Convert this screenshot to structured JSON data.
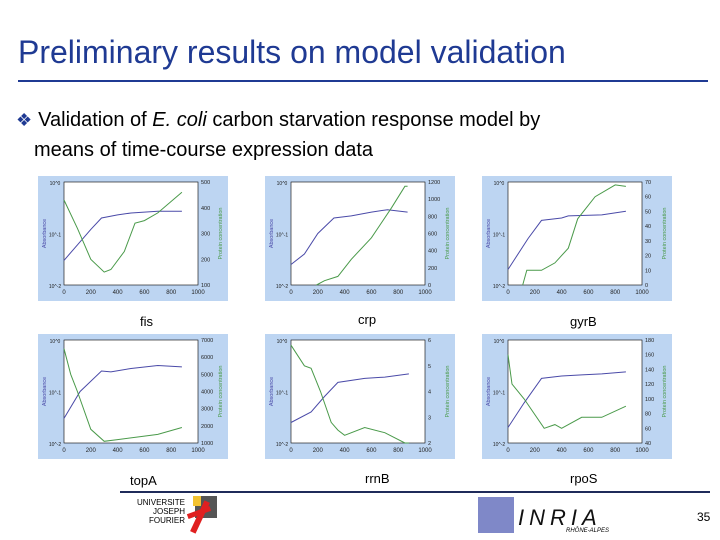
{
  "slide": {
    "title": "Preliminary results on model validation",
    "bullet_pre": "Validation of ",
    "bullet_em": "E. coli",
    "bullet_post": " carbon starvation response model by",
    "bullet_line2": "means of time-course expression data",
    "page_number": "35",
    "logo_left": "UNIVERSITE JOSEPH FOURIER",
    "logo_right": "INRIA",
    "logo_right_sub": "RHÔNE-ALPES"
  },
  "colors": {
    "title": "#1f3a93",
    "panel_bg": "#bdd5f2",
    "absorbance": "#4a4aa8",
    "protein": "#4a9a4a"
  },
  "chart_data": [
    {
      "type": "line",
      "gene": "fis",
      "xlim": [
        0,
        1000
      ],
      "xticks": [
        0,
        200,
        400,
        600,
        800,
        1000
      ],
      "ylabel": "Absorbance",
      "yscale": "log",
      "ylim": [
        0.01,
        1
      ],
      "yticks": [
        "10^0",
        "10^-1",
        "10^-2"
      ],
      "y2label": "Protein concentration",
      "y2lim": [
        100,
        500
      ],
      "y2ticks": [
        100,
        200,
        300,
        400,
        500
      ],
      "series": [
        {
          "name": "Absorbance",
          "axis": "left",
          "x": [
            0,
            100,
            200,
            280,
            400,
            500,
            600,
            700,
            880
          ],
          "y": [
            0.03,
            0.06,
            0.12,
            0.2,
            0.23,
            0.25,
            0.26,
            0.27,
            0.27
          ]
        },
        {
          "name": "Protein concentration",
          "axis": "right",
          "x": [
            0,
            100,
            200,
            300,
            350,
            450,
            530,
            600,
            700,
            880
          ],
          "y": [
            430,
            320,
            200,
            150,
            160,
            230,
            340,
            350,
            380,
            460
          ]
        }
      ]
    },
    {
      "type": "line",
      "gene": "crp",
      "xlim": [
        0,
        1000
      ],
      "xticks": [
        0,
        200,
        400,
        600,
        800,
        1000
      ],
      "ylabel": "Absorbance",
      "yscale": "log",
      "ylim": [
        0.01,
        1
      ],
      "yticks": [
        "10^0",
        "10^-1",
        "10^-2"
      ],
      "y2label": "Protein concentration",
      "y2lim": [
        0,
        1200
      ],
      "y2ticks": [
        0,
        200,
        400,
        600,
        800,
        1000,
        1200
      ],
      "series": [
        {
          "name": "Absorbance",
          "axis": "left",
          "x": [
            0,
            100,
            200,
            320,
            450,
            600,
            720,
            870
          ],
          "y": [
            0.025,
            0.04,
            0.1,
            0.2,
            0.22,
            0.26,
            0.29,
            0.26
          ]
        },
        {
          "name": "Protein concentration",
          "axis": "right",
          "x": [
            190,
            250,
            350,
            450,
            600,
            750,
            850,
            870
          ],
          "y": [
            0,
            50,
            100,
            300,
            550,
            900,
            1150,
            1150
          ]
        }
      ]
    },
    {
      "type": "line",
      "gene": "gyrB",
      "xlim": [
        0,
        1000
      ],
      "xticks": [
        0,
        200,
        400,
        600,
        800,
        1000
      ],
      "ylabel": "Absorbance",
      "yscale": "log",
      "ylim": [
        0.01,
        1
      ],
      "yticks": [
        "10^0",
        "10^-1",
        "10^-2"
      ],
      "y2label": "Protein concentration",
      "y2lim": [
        0,
        70
      ],
      "y2ticks": [
        0,
        10,
        20,
        30,
        40,
        50,
        60,
        70
      ],
      "series": [
        {
          "name": "Absorbance",
          "axis": "left",
          "x": [
            0,
            150,
            250,
            400,
            450,
            700,
            880
          ],
          "y": [
            0.02,
            0.08,
            0.18,
            0.2,
            0.22,
            0.23,
            0.27
          ]
        },
        {
          "name": "Protein concentration",
          "axis": "right",
          "x": [
            110,
            140,
            250,
            350,
            450,
            520,
            650,
            800,
            880
          ],
          "y": [
            0,
            10,
            10,
            15,
            25,
            45,
            60,
            68,
            67
          ]
        }
      ]
    },
    {
      "type": "line",
      "gene": "topA",
      "xlim": [
        0,
        1000
      ],
      "xticks": [
        0,
        200,
        400,
        600,
        800,
        1000
      ],
      "ylabel": "Absorbance",
      "yscale": "log",
      "ylim": [
        0.01,
        1
      ],
      "yticks": [
        "10^0",
        "10^-1",
        "10^-2"
      ],
      "y2label": "Protein concentration",
      "y2lim": [
        1000,
        7000
      ],
      "y2ticks": [
        1000,
        2000,
        3000,
        4000,
        5000,
        6000,
        7000
      ],
      "series": [
        {
          "name": "Absorbance",
          "axis": "left",
          "x": [
            0,
            120,
            280,
            350,
            500,
            700,
            880
          ],
          "y": [
            0.03,
            0.1,
            0.25,
            0.24,
            0.28,
            0.32,
            0.3
          ]
        },
        {
          "name": "Protein concentration",
          "axis": "right",
          "x": [
            0,
            50,
            100,
            200,
            300,
            400,
            600,
            700,
            880
          ],
          "y": [
            6500,
            5000,
            4000,
            1800,
            1100,
            1200,
            1400,
            1500,
            1900
          ]
        }
      ]
    },
    {
      "type": "line",
      "gene": "rrnB",
      "xlim": [
        0,
        1000
      ],
      "xticks": [
        0,
        200,
        400,
        600,
        800,
        1000
      ],
      "ylabel": "Absorbance",
      "yscale": "log",
      "ylim": [
        0.01,
        1
      ],
      "yticks": [
        "10^0",
        "10^-1",
        "10^-2"
      ],
      "y2label": "Protein concentration",
      "y2lim": [
        2,
        6
      ],
      "y2ticks": [
        2,
        3,
        4,
        5,
        6
      ],
      "series": [
        {
          "name": "Absorbance",
          "axis": "left",
          "x": [
            0,
            150,
            250,
            350,
            550,
            700,
            880
          ],
          "y": [
            0.025,
            0.04,
            0.08,
            0.15,
            0.18,
            0.19,
            0.22
          ]
        },
        {
          "name": "Protein concentration",
          "axis": "right",
          "x": [
            0,
            100,
            150,
            220,
            300,
            350,
            400,
            550,
            700,
            850,
            880
          ],
          "y": [
            5.8,
            5,
            4.9,
            4,
            2.8,
            2.5,
            2.3,
            2.6,
            2.4,
            2.0,
            2.0
          ]
        }
      ]
    },
    {
      "type": "line",
      "gene": "rpoS",
      "xlim": [
        0,
        1000
      ],
      "xticks": [
        0,
        200,
        400,
        600,
        800,
        1000
      ],
      "ylabel": "Absorbance",
      "yscale": "log",
      "ylim": [
        0.01,
        1
      ],
      "yticks": [
        "10^0",
        "10^-1",
        "10^-2"
      ],
      "y2label": "Protein concentration",
      "y2lim": [
        40,
        180
      ],
      "y2ticks": [
        40,
        60,
        80,
        100,
        120,
        140,
        160,
        180
      ],
      "series": [
        {
          "name": "Absorbance",
          "axis": "left",
          "x": [
            0,
            120,
            250,
            400,
            550,
            700,
            880
          ],
          "y": [
            0.02,
            0.06,
            0.18,
            0.2,
            0.21,
            0.22,
            0.24
          ]
        },
        {
          "name": "Protein concentration",
          "axis": "right",
          "x": [
            0,
            30,
            120,
            270,
            350,
            400,
            550,
            700,
            880
          ],
          "y": [
            160,
            120,
            100,
            60,
            65,
            60,
            75,
            75,
            90
          ]
        }
      ]
    }
  ]
}
